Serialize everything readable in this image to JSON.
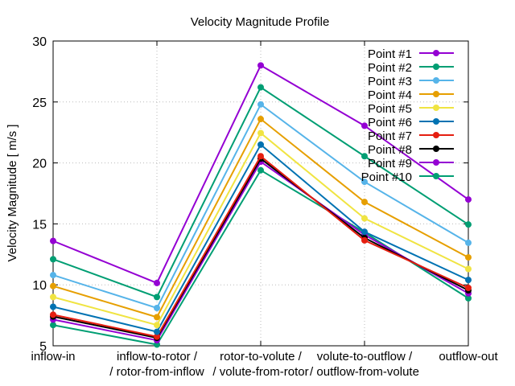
{
  "chart_data": {
    "type": "line",
    "title": "Velocity Magnitude Profile",
    "xlabel": "",
    "ylabel": "Velocity Magnitude [ m/s ]",
    "ylim": [
      5,
      30
    ],
    "yticks": [
      "5",
      "10",
      "15",
      "20",
      "25",
      "30"
    ],
    "ytick_values": [
      5,
      10,
      15,
      20,
      25,
      30
    ],
    "grid": true,
    "legend_position": "top-right",
    "categories": [
      [
        "inflow-in"
      ],
      [
        "inflow-to-rotor /",
        "/ rotor-from-inflow"
      ],
      [
        "rotor-to-volute /",
        "/ volute-from-rotor"
      ],
      [
        "volute-to-outflow /",
        "/ outflow-from-volute"
      ],
      [
        "outflow-out"
      ]
    ],
    "series": [
      {
        "name": "Point #1",
        "color": "#9400d3",
        "values": [
          13.6,
          10.15,
          28.0,
          23.05,
          17.0
        ]
      },
      {
        "name": "Point #2",
        "color": "#009e73",
        "values": [
          12.1,
          9.0,
          26.2,
          20.55,
          14.95
        ]
      },
      {
        "name": "Point #3",
        "color": "#56b4e9",
        "values": [
          10.8,
          8.1,
          24.8,
          18.45,
          13.45
        ]
      },
      {
        "name": "Point #4",
        "color": "#e69f00",
        "values": [
          9.9,
          7.35,
          23.6,
          16.8,
          12.25
        ]
      },
      {
        "name": "Point #5",
        "color": "#f0e442",
        "values": [
          9.0,
          6.7,
          22.45,
          15.45,
          11.3
        ]
      },
      {
        "name": "Point #6",
        "color": "#0072b2",
        "values": [
          8.2,
          6.15,
          21.5,
          14.35,
          10.4
        ]
      },
      {
        "name": "Point #7",
        "color": "#e51e10",
        "values": [
          7.55,
          5.75,
          20.55,
          13.65,
          9.75
        ]
      },
      {
        "name": "Point #8",
        "color": "#000000",
        "values": [
          7.4,
          5.65,
          20.35,
          13.85,
          9.55
        ]
      },
      {
        "name": "Point #9",
        "color": "#9400d3",
        "values": [
          7.15,
          5.45,
          20.1,
          14.1,
          9.3
        ]
      },
      {
        "name": "Point #10",
        "color": "#009e73",
        "values": [
          6.7,
          5.1,
          19.4,
          14.3,
          8.9
        ]
      }
    ]
  }
}
